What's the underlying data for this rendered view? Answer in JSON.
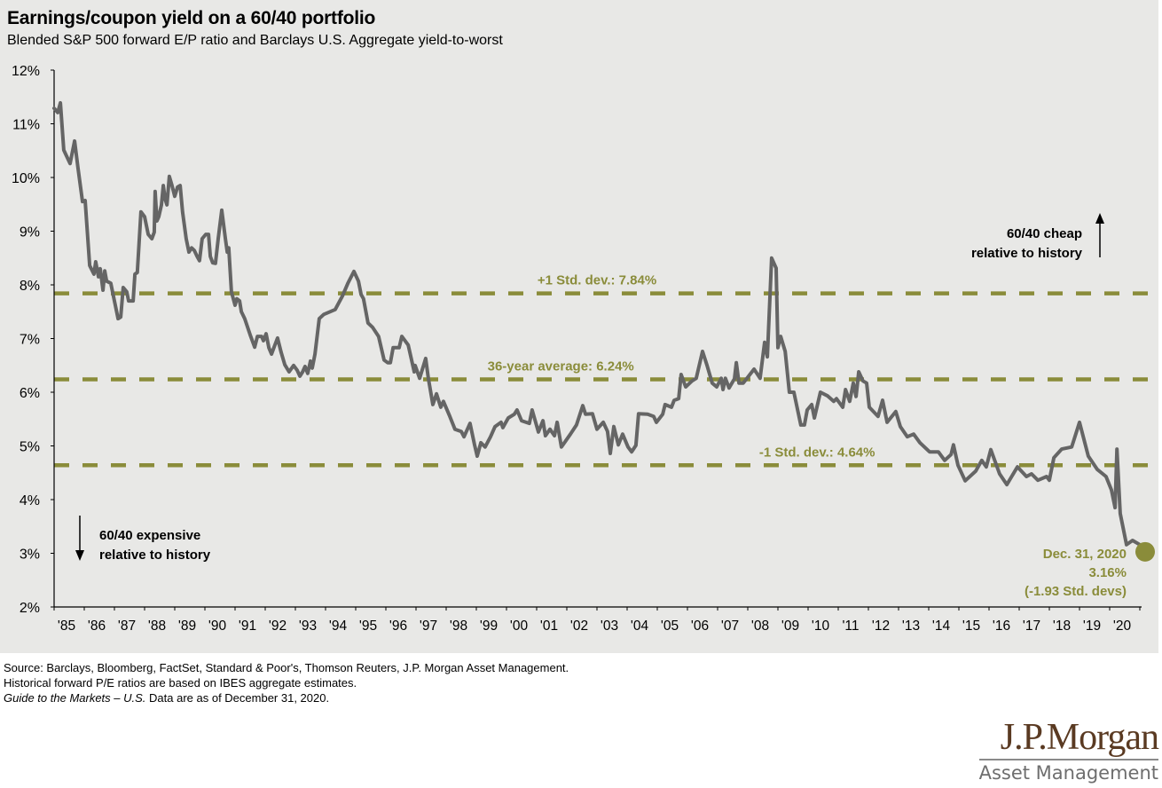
{
  "header": {
    "title": "Earnings/coupon yield on a 60/40 portfolio",
    "subtitle": "Blended S&P 500 forward E/P ratio and Barclays U.S. Aggregate yield-to-worst"
  },
  "footer": {
    "source": "Source: Barclays, Bloomberg, FactSet, Standard & Poor's, Thomson Reuters, J.P. Morgan Asset Management.",
    "note": "Historical forward P/E ratios are based on IBES aggregate estimates.",
    "guide_italic": "Guide to the Markets – U.S.",
    "guide_rest": " Data are as of December 31, 2020."
  },
  "logo": {
    "main": "J.P.Morgan",
    "sub": "Asset Management"
  },
  "colors": {
    "line": "#656565",
    "accent": "#8a8c3a",
    "axis": "#000000",
    "background": "#e8e8e6"
  },
  "chart_data": {
    "type": "line",
    "title": "Earnings/coupon yield on a 60/40 portfolio",
    "subtitle": "Blended S&P 500 forward E/P ratio and Barclays U.S. Aggregate yield-to-worst",
    "xlabel": "",
    "ylabel": "",
    "xlim": [
      1985,
      2021
    ],
    "ylim": [
      2,
      12
    ],
    "grid": false,
    "y_ticks": [
      2,
      3,
      4,
      5,
      6,
      7,
      8,
      9,
      10,
      11,
      12
    ],
    "y_tick_labels": [
      "2%",
      "3%",
      "4%",
      "5%",
      "6%",
      "7%",
      "8%",
      "9%",
      "10%",
      "11%",
      "12%"
    ],
    "x_ticks": [
      1985,
      1986,
      1987,
      1988,
      1989,
      1990,
      1991,
      1992,
      1993,
      1994,
      1995,
      1996,
      1997,
      1998,
      1999,
      2000,
      2001,
      2002,
      2003,
      2004,
      2005,
      2006,
      2007,
      2008,
      2009,
      2010,
      2011,
      2012,
      2013,
      2014,
      2015,
      2016,
      2017,
      2018,
      2019,
      2020
    ],
    "x_tick_labels": [
      "'85",
      "'86",
      "'87",
      "'88",
      "'89",
      "'90",
      "'91",
      "'92",
      "'93",
      "'94",
      "'95",
      "'96",
      "'97",
      "'98",
      "'99",
      "'00",
      "'01",
      "'02",
      "'03",
      "'04",
      "'05",
      "'06",
      "'07",
      "'08",
      "'09",
      "'10",
      "'11",
      "'12",
      "'13",
      "'14",
      "'15",
      "'16",
      "'17",
      "'18",
      "'19",
      "'20"
    ],
    "series": [
      {
        "name": "60/40 earnings/coupon yield",
        "x": [
          1985.0,
          1985.12,
          1985.21,
          1985.32,
          1985.53,
          1985.68,
          1985.79,
          1985.94,
          1986.03,
          1986.18,
          1986.32,
          1986.38,
          1986.47,
          1986.53,
          1986.62,
          1986.68,
          1986.74,
          1986.88,
          1987.03,
          1987.12,
          1987.21,
          1987.29,
          1987.41,
          1987.47,
          1987.62,
          1987.68,
          1987.76,
          1987.88,
          1988.0,
          1988.12,
          1988.24,
          1988.32,
          1988.35,
          1988.41,
          1988.47,
          1988.56,
          1988.62,
          1988.68,
          1988.74,
          1988.82,
          1988.91,
          1989.0,
          1989.09,
          1989.18,
          1989.26,
          1989.38,
          1989.47,
          1989.56,
          1989.65,
          1989.74,
          1989.82,
          1989.91,
          1990.03,
          1990.12,
          1990.18,
          1990.26,
          1990.35,
          1990.44,
          1990.56,
          1990.68,
          1990.74,
          1990.79,
          1990.88,
          1991.0,
          1991.06,
          1991.15,
          1991.21,
          1991.32,
          1991.5,
          1991.65,
          1991.74,
          1991.88,
          1991.94,
          1992.03,
          1992.12,
          1992.21,
          1992.32,
          1992.41,
          1992.53,
          1992.65,
          1992.79,
          1992.94,
          1993.06,
          1993.15,
          1993.24,
          1993.32,
          1993.41,
          1993.5,
          1993.56,
          1993.65,
          1993.79,
          1993.94,
          1994.15,
          1994.32,
          1994.56,
          1994.74,
          1994.94,
          1995.09,
          1995.18,
          1995.26,
          1995.41,
          1995.56,
          1995.76,
          1995.94,
          1996.06,
          1996.15,
          1996.24,
          1996.44,
          1996.53,
          1996.74,
          1996.94,
          1996.97,
          1997.12,
          1997.32,
          1997.41,
          1997.56,
          1997.68,
          1997.82,
          1997.91,
          1998.12,
          1998.29,
          1998.5,
          1998.59,
          1998.79,
          1998.94,
          1999.03,
          1999.15,
          1999.29,
          1999.47,
          1999.62,
          1999.82,
          1999.88,
          2000.06,
          2000.26,
          2000.35,
          2000.5,
          2000.76,
          2000.85,
          2001.06,
          2001.21,
          2001.29,
          2001.44,
          2001.59,
          2001.68,
          2001.82,
          2002.12,
          2002.32,
          2002.53,
          2002.62,
          2002.85,
          2003.0,
          2003.21,
          2003.35,
          2003.44,
          2003.56,
          2003.71,
          2003.85,
          2004.03,
          2004.15,
          2004.29,
          2004.38,
          2004.68,
          2004.88,
          2004.97,
          2005.18,
          2005.26,
          2005.47,
          2005.56,
          2005.71,
          2005.79,
          2005.94,
          2006.15,
          2006.29,
          2006.5,
          2006.65,
          2006.82,
          2006.97,
          2007.12,
          2007.18,
          2007.26,
          2007.38,
          2007.56,
          2007.62,
          2007.71,
          2007.85,
          2008.21,
          2008.41,
          2008.56,
          2008.65,
          2008.79,
          2008.94,
          2009.0,
          2009.09,
          2009.24,
          2009.38,
          2009.53,
          2009.76,
          2009.88,
          2009.97,
          2010.12,
          2010.21,
          2010.41,
          2010.65,
          2010.85,
          2010.94,
          2011.15,
          2011.24,
          2011.38,
          2011.5,
          2011.59,
          2011.68,
          2011.82,
          2011.94,
          2012.03,
          2012.32,
          2012.47,
          2012.62,
          2012.91,
          2013.06,
          2013.29,
          2013.5,
          2013.71,
          2014.03,
          2014.32,
          2014.53,
          2014.74,
          2014.82,
          2014.97,
          2015.21,
          2015.56,
          2015.76,
          2015.91,
          2016.06,
          2016.35,
          2016.59,
          2016.94,
          2017.24,
          2017.41,
          2017.62,
          2017.91,
          2018.0,
          2018.15,
          2018.41,
          2018.74,
          2019.0,
          2019.29,
          2019.59,
          2019.88,
          2020.06,
          2020.18,
          2020.24,
          2020.35,
          2020.56,
          2020.76,
          2021.0
        ],
        "values": [
          11.29,
          11.21,
          11.39,
          10.51,
          10.26,
          10.68,
          10.18,
          9.55,
          9.57,
          8.36,
          8.2,
          8.43,
          8.15,
          8.3,
          7.9,
          8.26,
          8.07,
          8.03,
          7.62,
          7.37,
          7.4,
          7.95,
          7.87,
          7.7,
          7.7,
          8.2,
          8.23,
          9.36,
          9.27,
          8.94,
          8.86,
          8.98,
          9.74,
          9.19,
          9.27,
          9.49,
          9.85,
          9.6,
          9.49,
          10.02,
          9.85,
          9.65,
          9.82,
          9.85,
          9.36,
          8.86,
          8.61,
          8.69,
          8.64,
          8.53,
          8.45,
          8.86,
          8.94,
          8.94,
          8.53,
          8.41,
          8.4,
          8.86,
          9.39,
          8.86,
          8.61,
          8.69,
          7.87,
          7.62,
          7.74,
          7.7,
          7.5,
          7.37,
          7.07,
          6.84,
          7.04,
          7.04,
          6.96,
          7.09,
          6.83,
          6.71,
          6.88,
          7.01,
          6.74,
          6.51,
          6.38,
          6.5,
          6.41,
          6.3,
          6.38,
          6.48,
          6.35,
          6.58,
          6.45,
          6.71,
          7.37,
          7.45,
          7.5,
          7.54,
          7.79,
          8.03,
          8.25,
          8.07,
          7.82,
          7.74,
          7.29,
          7.21,
          7.04,
          6.6,
          6.55,
          6.55,
          6.83,
          6.83,
          7.04,
          6.88,
          6.38,
          6.5,
          6.26,
          6.63,
          6.26,
          5.77,
          5.97,
          5.72,
          5.83,
          5.55,
          5.31,
          5.27,
          5.17,
          5.42,
          5.02,
          4.81,
          5.06,
          4.98,
          5.17,
          5.36,
          5.44,
          5.34,
          5.52,
          5.59,
          5.67,
          5.47,
          5.42,
          5.67,
          5.26,
          5.47,
          5.19,
          5.31,
          5.19,
          5.44,
          4.98,
          5.22,
          5.39,
          5.75,
          5.59,
          5.6,
          5.31,
          5.44,
          5.27,
          4.86,
          5.36,
          5.02,
          5.22,
          4.98,
          4.89,
          5.01,
          5.6,
          5.59,
          5.55,
          5.44,
          5.59,
          5.77,
          5.72,
          5.85,
          5.88,
          6.33,
          6.1,
          6.21,
          6.26,
          6.76,
          6.5,
          6.17,
          6.1,
          6.26,
          6.05,
          6.26,
          6.08,
          6.25,
          6.55,
          6.17,
          6.17,
          6.43,
          6.26,
          6.93,
          6.66,
          8.5,
          8.31,
          6.83,
          7.04,
          6.76,
          6.0,
          6.0,
          5.39,
          5.39,
          5.67,
          5.77,
          5.52,
          6.0,
          5.93,
          5.83,
          5.88,
          5.72,
          6.05,
          5.83,
          6.17,
          5.92,
          6.38,
          6.21,
          6.17,
          5.72,
          5.55,
          5.85,
          5.44,
          5.64,
          5.36,
          5.17,
          5.22,
          5.06,
          4.89,
          4.89,
          4.73,
          4.84,
          5.02,
          4.64,
          4.35,
          4.53,
          4.73,
          4.61,
          4.93,
          4.48,
          4.28,
          4.61,
          4.43,
          4.48,
          4.36,
          4.43,
          4.36,
          4.78,
          4.94,
          4.98,
          5.44,
          4.81,
          4.56,
          4.43,
          4.18,
          3.85,
          4.94,
          3.74,
          3.16,
          3.24,
          3.16
        ]
      }
    ],
    "reference_lines": [
      {
        "name": "plus-1-std-dev",
        "value": 7.84,
        "label": "+1 Std. dev.: 7.84%",
        "label_x": 2003.0
      },
      {
        "name": "average",
        "value": 6.24,
        "label": "36-year average: 6.24%",
        "label_x": 2001.8
      },
      {
        "name": "minus-1-std-dev",
        "value": 4.64,
        "label": "-1 Std. dev.: 4.64%",
        "label_x": 2010.3
      }
    ],
    "endpoint": {
      "x": 2021.0,
      "value": 3.16,
      "labels": [
        "Dec. 31, 2020",
        "3.16%",
        "(-1.93 Std. devs)"
      ]
    },
    "annotations": {
      "cheap": [
        "60/40 cheap",
        "relative to history"
      ],
      "expensive": [
        "60/40 expensive",
        "relative to history"
      ]
    }
  }
}
